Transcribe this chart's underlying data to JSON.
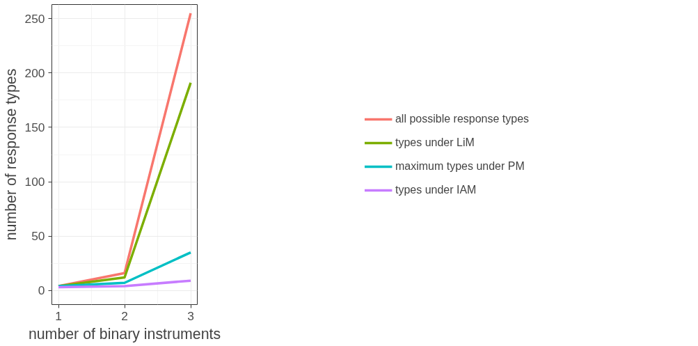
{
  "chart_data": {
    "type": "line",
    "xlabel": "number of binary instruments",
    "ylabel": "number of response types",
    "x": [
      1,
      2,
      3
    ],
    "xlim": [
      0.9,
      3.1
    ],
    "xticks": [
      1,
      2,
      3
    ],
    "ylim": [
      -13,
      263
    ],
    "yticks": [
      0,
      50,
      100,
      150,
      200,
      250
    ],
    "grid": true,
    "legend": "right",
    "line_style": "solid",
    "marker": "none",
    "series": [
      {
        "name": "all possible response types",
        "color": "#f8766d",
        "values": [
          4,
          16,
          255
        ]
      },
      {
        "name": "types under LiM",
        "color": "#7cae00",
        "values": [
          4,
          12,
          191
        ]
      },
      {
        "name": "maximum types under PM",
        "color": "#00bfc4",
        "values": [
          4,
          7,
          35
        ]
      },
      {
        "name": "types under IAM",
        "color": "#c77cff",
        "values": [
          3,
          4,
          9
        ]
      }
    ]
  }
}
